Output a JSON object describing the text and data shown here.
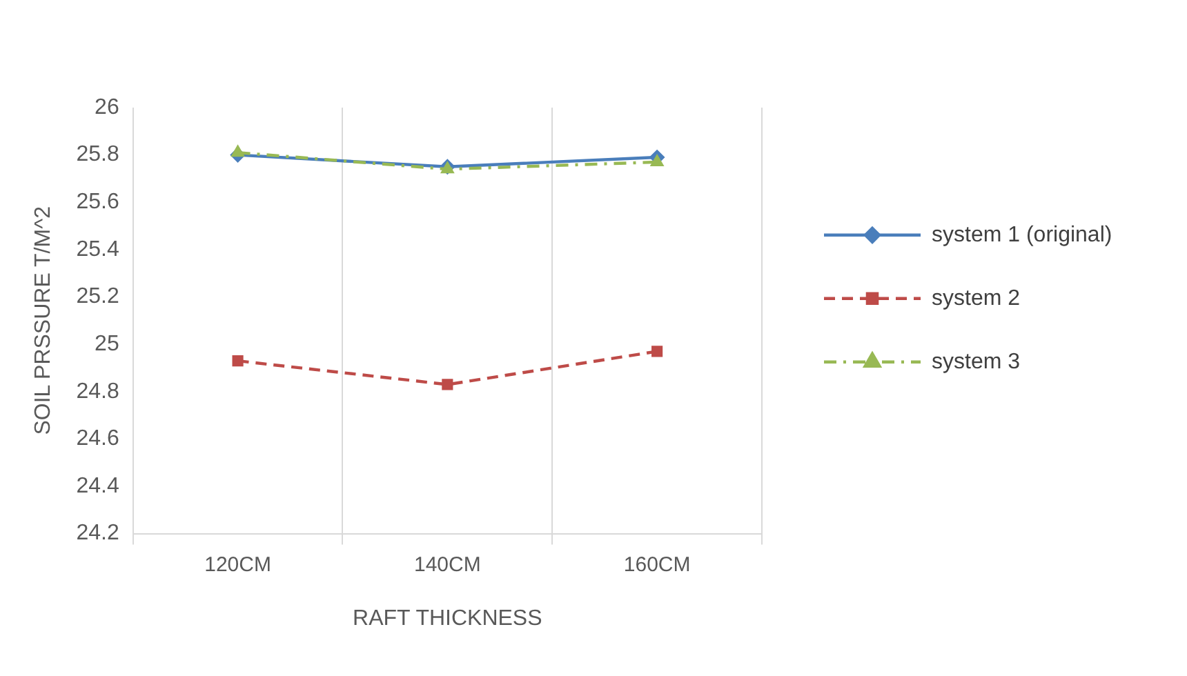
{
  "chart_data": {
    "type": "line",
    "xlabel": "RAFT THICKNESS",
    "ylabel": "SOIL PRSSURE T/M^2",
    "categories": [
      "120CM",
      "140CM",
      "160CM"
    ],
    "series": [
      {
        "name": "system 1 (original)",
        "color": "#4a7ebb",
        "values": [
          25.8,
          25.75,
          25.79
        ],
        "marker": "diamond",
        "line_style": "solid"
      },
      {
        "name": "system 2",
        "color": "#be4b48",
        "values": [
          24.93,
          24.83,
          24.97
        ],
        "marker": "square",
        "line_style": "dashed"
      },
      {
        "name": "system 3",
        "color": "#98b954",
        "values": [
          25.81,
          25.74,
          25.77
        ],
        "marker": "triangle",
        "line_style": "dotted"
      }
    ],
    "ylim": [
      24.2,
      26
    ],
    "yticks": [
      24.2,
      24.4,
      24.6,
      24.8,
      25,
      25.2,
      25.4,
      25.6,
      25.8,
      26
    ],
    "grid": "x",
    "legend": "right"
  }
}
